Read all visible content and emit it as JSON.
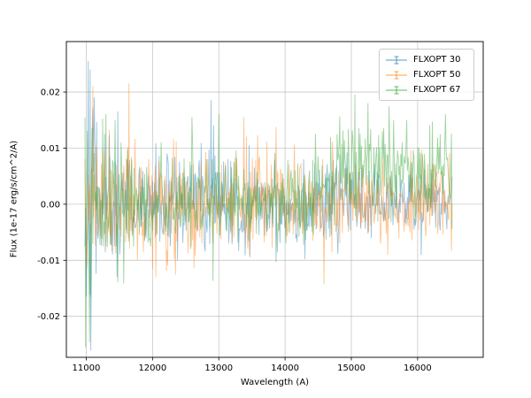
{
  "figure": {
    "background": "#ffffff"
  },
  "chart_data": {
    "type": "line",
    "title": "",
    "xlabel": "Wavelength (A)",
    "ylabel": "Flux (1e-17 erg/s/cm^2/A)",
    "xlim": [
      10700,
      16990
    ],
    "ylim": [
      -0.0273,
      0.029
    ],
    "xticks": [
      11000,
      12000,
      13000,
      14000,
      15000,
      16000
    ],
    "xtick_labels": [
      "11000",
      "12000",
      "13000",
      "14000",
      "15000",
      "16000"
    ],
    "yticks": [
      -0.02,
      -0.01,
      0.0,
      0.01,
      0.02
    ],
    "ytick_labels": [
      "-0.02",
      "-0.01",
      "0.00",
      "0.01",
      "0.02"
    ],
    "grid": true,
    "grid_color": "#b0b0b0",
    "frame_color": "#000000",
    "seed": 42,
    "n_points": 560,
    "x_range": [
      10980,
      16520
    ],
    "legend": {
      "position": "upper right",
      "entries": [
        {
          "label": "FLXOPT 30",
          "color": "#1f77b4"
        },
        {
          "label": "FLXOPT 50",
          "color": "#ff7f0e"
        },
        {
          "label": "FLXOPT 67",
          "color": "#2ca02c"
        }
      ]
    },
    "series": [
      {
        "name": "FLXOPT 30",
        "color": "#1f77b4",
        "alpha": 0.45,
        "segments": [
          {
            "x0": 10980,
            "x1": 11150,
            "mean": 0.002,
            "std": 0.01
          },
          {
            "x0": 11150,
            "x1": 11600,
            "mean": 0.0,
            "std": 0.006
          },
          {
            "x0": 11600,
            "x1": 12600,
            "mean": 0.0,
            "std": 0.0045
          },
          {
            "x0": 12600,
            "x1": 13100,
            "mean": 0.0,
            "std": 0.005
          },
          {
            "x0": 13100,
            "x1": 14800,
            "mean": 0.0,
            "std": 0.004
          },
          {
            "x0": 14800,
            "x1": 16520,
            "mean": 0.0005,
            "std": 0.003
          }
        ],
        "spikes": [
          {
            "x": 11030,
            "y": 0.0255
          },
          {
            "x": 11055,
            "y": 0.024
          },
          {
            "x": 11075,
            "y": -0.01
          },
          {
            "x": 11120,
            "y": 0.019
          },
          {
            "x": 11480,
            "y": 0.0165
          },
          {
            "x": 12880,
            "y": 0.0185
          },
          {
            "x": 12920,
            "y": 0.014
          },
          {
            "x": 16050,
            "y": -0.009
          }
        ]
      },
      {
        "name": "FLXOPT 50",
        "color": "#ff7f0e",
        "alpha": 0.45,
        "segments": [
          {
            "x0": 10980,
            "x1": 11150,
            "mean": -0.001,
            "std": 0.007
          },
          {
            "x0": 11150,
            "x1": 11700,
            "mean": 0.0,
            "std": 0.0055
          },
          {
            "x0": 11700,
            "x1": 12800,
            "mean": -0.0005,
            "std": 0.005
          },
          {
            "x0": 12800,
            "x1": 14600,
            "mean": 0.0,
            "std": 0.0045
          },
          {
            "x0": 14600,
            "x1": 16520,
            "mean": 0.0,
            "std": 0.0035
          }
        ],
        "spikes": [
          {
            "x": 11100,
            "y": 0.021
          },
          {
            "x": 11640,
            "y": 0.0215
          },
          {
            "x": 12050,
            "y": -0.013
          },
          {
            "x": 12350,
            "y": -0.0125
          },
          {
            "x": 13380,
            "y": 0.0155
          },
          {
            "x": 13420,
            "y": 0.012
          },
          {
            "x": 15550,
            "y": -0.009
          },
          {
            "x": 16480,
            "y": 0.009
          }
        ]
      },
      {
        "name": "FLXOPT 67",
        "color": "#2ca02c",
        "alpha": 0.45,
        "segments": [
          {
            "x0": 10980,
            "x1": 11120,
            "mean": -0.002,
            "std": 0.01
          },
          {
            "x0": 11120,
            "x1": 11500,
            "mean": 0.001,
            "std": 0.007
          },
          {
            "x0": 11500,
            "x1": 12300,
            "mean": 0.0,
            "std": 0.005
          },
          {
            "x0": 12300,
            "x1": 14400,
            "mean": 0.0,
            "std": 0.004
          },
          {
            "x0": 14400,
            "x1": 14800,
            "mean": 0.003,
            "std": 0.0038
          },
          {
            "x0": 14800,
            "x1": 15600,
            "mean": 0.007,
            "std": 0.004
          },
          {
            "x0": 15600,
            "x1": 16200,
            "mean": 0.005,
            "std": 0.0035
          },
          {
            "x0": 16200,
            "x1": 16520,
            "mean": 0.007,
            "std": 0.0035
          }
        ],
        "spikes": [
          {
            "x": 11045,
            "y": -0.0245
          },
          {
            "x": 11020,
            "y": 0.013
          },
          {
            "x": 11300,
            "y": 0.016
          },
          {
            "x": 12600,
            "y": 0.0155
          },
          {
            "x": 13000,
            "y": 0.016
          },
          {
            "x": 15050,
            "y": 0.0195
          },
          {
            "x": 15250,
            "y": 0.018
          },
          {
            "x": 16420,
            "y": 0.016
          }
        ]
      }
    ]
  }
}
